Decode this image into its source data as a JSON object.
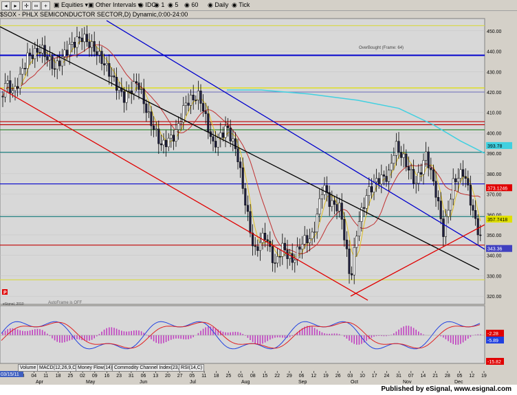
{
  "toolbar": {
    "items": [
      "Equities",
      "Other Intervals",
      "IDC",
      "1",
      "5",
      "60",
      "Daily",
      "Tick"
    ]
  },
  "chart_title": "$SOX - PHLX SEMICONDUCTOR SECTOR,D) Dynamic,0:00-24:00",
  "overbought_label": "OverBought (Frame: 64)",
  "autoframe_label": "AutoFrame is OFF",
  "copyright": "eSignal, 2010",
  "p_marker": "P",
  "price_tags": [
    "393.78",
    "373.1246",
    "357.7418",
    "343.36"
  ],
  "macd_tags": [
    "2.28",
    "5.89",
    "15.82"
  ],
  "date_label": "03/15/11",
  "tabs": [
    "Volume",
    "MACD(12,26,9,C)",
    "Money Flow(14)",
    "Commodity Channel Index(23,C)",
    "RSI(14,C)"
  ],
  "footer": "Published by eSignal, www.esignal.com",
  "chart_data": {
    "type": "candlestick",
    "title": "$SOX - PHLX SEMICONDUCTOR SECTOR",
    "y_ticks": [
      320,
      330,
      340,
      350,
      360,
      370,
      380,
      390,
      400,
      410,
      420,
      430,
      440,
      450
    ],
    "ylim": [
      316,
      456
    ],
    "x_day_labels": [
      "21",
      "28",
      "04",
      "11",
      "18",
      "25",
      "02",
      "09",
      "16",
      "23",
      "31",
      "06",
      "13",
      "20",
      "27",
      "05",
      "11",
      "18",
      "25",
      "01",
      "08",
      "15",
      "22",
      "29",
      "06",
      "12",
      "19",
      "26",
      "03",
      "10",
      "17",
      "24",
      "31",
      "07",
      "14",
      "21",
      "28",
      "05",
      "12",
      "19"
    ],
    "x_month_labels": [
      "Apr",
      "May",
      "Jun",
      "Jul",
      "Aug",
      "Sep",
      "Oct",
      "Nov",
      "Dec"
    ],
    "horizontal_levels": [
      {
        "value": 452.5,
        "color": "#d8d850"
      },
      {
        "value": 438,
        "color": "#0000cc"
      },
      {
        "value": 422,
        "color": "#e0e000"
      },
      {
        "value": 420,
        "color": "#8080c0"
      },
      {
        "value": 405.5,
        "color": "#c00000"
      },
      {
        "value": 404,
        "color": "#c00000"
      },
      {
        "value": 401.5,
        "color": "#208020"
      },
      {
        "value": 390.5,
        "color": "#208080"
      },
      {
        "value": 375,
        "color": "#0000cc"
      },
      {
        "value": 359,
        "color": "#208080"
      },
      {
        "value": 345,
        "color": "#c00000"
      },
      {
        "value": 328,
        "color": "#d8d850"
      }
    ],
    "trendlines": [
      {
        "from": [
          0,
          452
        ],
        "to": [
          697,
          333
        ],
        "color": "#000000"
      },
      {
        "from": [
          155,
          455
        ],
        "to": [
          705,
          343
        ],
        "color": "#0000cc"
      },
      {
        "from": [
          0,
          422
        ],
        "to": [
          535,
          318
        ],
        "color": "#e00000"
      },
      {
        "from": [
          510,
          320
        ],
        "to": [
          705,
          355
        ],
        "color": "#e00000"
      }
    ]
  }
}
